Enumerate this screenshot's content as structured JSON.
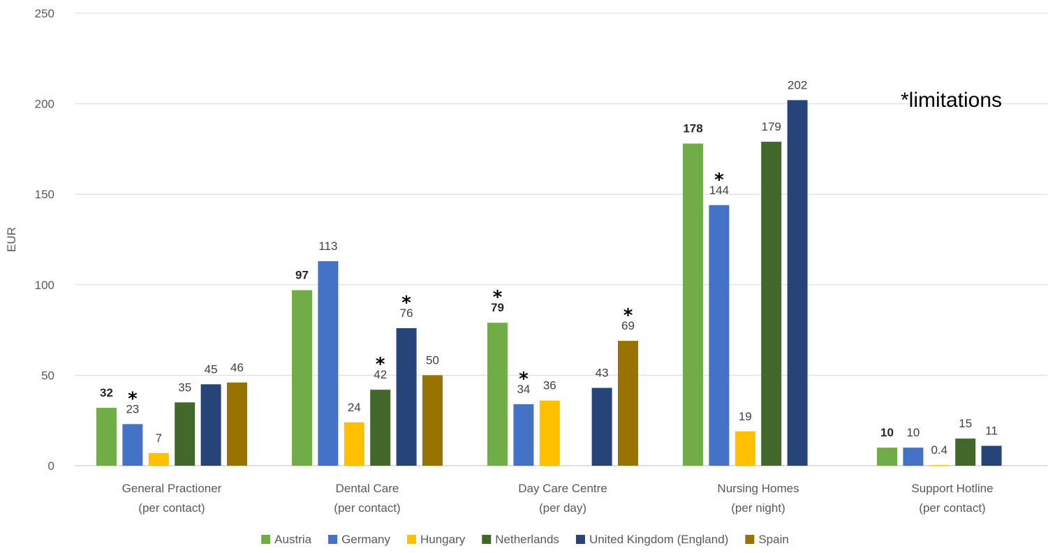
{
  "chart_data": {
    "type": "bar",
    "ylabel": "EUR",
    "ylim": [
      0,
      250
    ],
    "yticks": [
      0,
      50,
      100,
      150,
      200,
      250
    ],
    "grid": true,
    "legend_position": "bottom",
    "annotation": "*limitations",
    "categories": [
      [
        "General Practioner",
        "(per contact)"
      ],
      [
        "Dental Care",
        "(per contact)"
      ],
      [
        "Day Care Centre",
        "(per day)"
      ],
      [
        "Nursing Homes",
        "(per night)"
      ],
      [
        "Support Hotline",
        "(per contact)"
      ]
    ],
    "series": [
      {
        "name": "Austria",
        "color": "#70AD47",
        "values": [
          32,
          97,
          79,
          178,
          10
        ],
        "labels": [
          "32",
          "97",
          "79",
          "178",
          "10"
        ],
        "bold": [
          true,
          true,
          true,
          true,
          true
        ],
        "limitation": [
          false,
          false,
          true,
          false,
          false
        ]
      },
      {
        "name": "Germany",
        "color": "#4472C4",
        "values": [
          23,
          113,
          34,
          144,
          10
        ],
        "labels": [
          "23",
          "113",
          "34",
          "144",
          "10"
        ],
        "bold": [
          false,
          false,
          false,
          false,
          false
        ],
        "limitation": [
          true,
          false,
          true,
          true,
          false
        ]
      },
      {
        "name": "Hungary",
        "color": "#FFC000",
        "values": [
          7,
          24,
          36,
          19,
          0.4
        ],
        "labels": [
          "7",
          "24",
          "36",
          "19",
          "0.4"
        ],
        "bold": [
          false,
          false,
          false,
          false,
          false
        ],
        "limitation": [
          false,
          false,
          false,
          false,
          false
        ]
      },
      {
        "name": "Netherlands",
        "color": "#43682B",
        "values": [
          35,
          42,
          null,
          179,
          15
        ],
        "labels": [
          "35",
          "42",
          "",
          "179",
          "15"
        ],
        "bold": [
          false,
          false,
          false,
          false,
          false
        ],
        "limitation": [
          false,
          true,
          false,
          false,
          false
        ]
      },
      {
        "name": "United Kingdom (England)",
        "color": "#264478",
        "values": [
          45,
          76,
          43,
          202,
          11
        ],
        "labels": [
          "45",
          "76",
          "43",
          "202",
          "11"
        ],
        "bold": [
          false,
          false,
          false,
          false,
          false
        ],
        "limitation": [
          false,
          true,
          false,
          false,
          false
        ]
      },
      {
        "name": "Spain",
        "color": "#997300",
        "values": [
          46,
          50,
          69,
          null,
          null
        ],
        "labels": [
          "46",
          "50",
          "69",
          "",
          ""
        ],
        "bold": [
          false,
          false,
          false,
          false,
          false
        ],
        "limitation": [
          false,
          false,
          true,
          false,
          false
        ]
      }
    ]
  }
}
